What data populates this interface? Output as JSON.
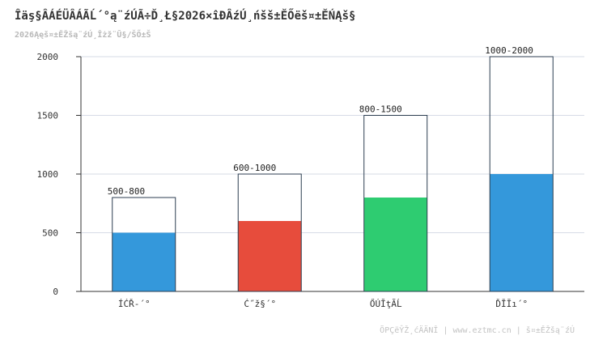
{
  "header": {
    "title": "Îäş§ÂÁÉÜÂÁÃĹ´°ą¨źÚÃ÷Ď¸Ł§2026×îĐÂźÚ¸ńšš±ĚŐëš¤±ĚŃĄš§",
    "subtitle": "2026Ąęš¤±ĚŽšą¨źÚ¸Îżž¨Ũ§/ŠŐ±Š"
  },
  "footer": {
    "watermark": "ÕPÇëŶŽ¸ćÄÄNÎ | www.eztmc.cn | š¤±ĚŽšą¨źÚ"
  },
  "colors": {
    "bar_0": "#3498db",
    "bar_1": "#e74c3c",
    "bar_2": "#2ecc71",
    "bar_3": "#3498db",
    "outline": "#2c3e50",
    "grid": "#d6dbe6"
  },
  "chart_data": {
    "type": "bar",
    "categories": [
      "ÍĆŘ-´°",
      "Ć˝ž§´°",
      "ŐÚĬţÃĹ",
      "ĎĪĬı´°"
    ],
    "values": [
      500,
      600,
      800,
      1000
    ],
    "range_max": [
      800,
      1000,
      1500,
      2000
    ],
    "range_labels": [
      "500-800",
      "600-1000",
      "800-1500",
      "1000-2000"
    ],
    "ylim": [
      0,
      2000
    ],
    "yticks": [
      0,
      500,
      1000,
      1500,
      2000
    ],
    "grid": true,
    "legend": "none"
  }
}
